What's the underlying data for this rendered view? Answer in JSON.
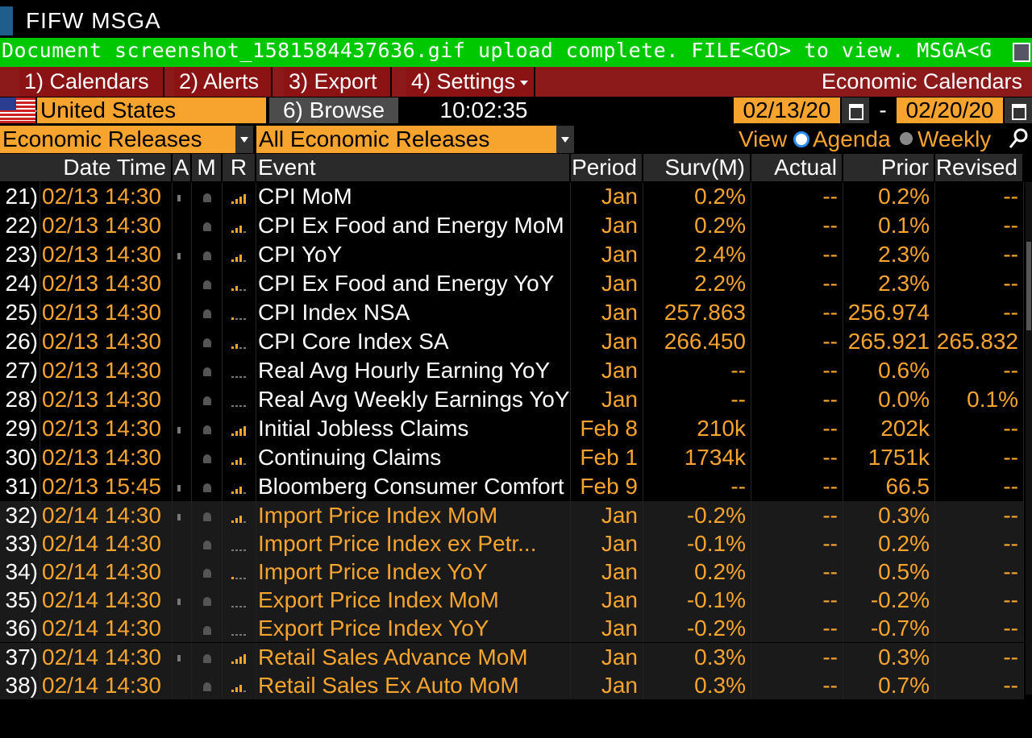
{
  "app": {
    "title": "FIFW MSGA"
  },
  "message": {
    "text": "Document screenshot_1581584437636.gif upload complete. FILE<GO> to view. MSGA<G",
    "color": "#00c800"
  },
  "menu": {
    "items": [
      {
        "label": "1) Calendars"
      },
      {
        "label": "2) Alerts"
      },
      {
        "label": "3) Export"
      },
      {
        "label": "4) Settings"
      }
    ],
    "right_label": "Economic Calendars"
  },
  "filters": {
    "country": "United States",
    "browse_label": "6) Browse",
    "clock": "10:02:35",
    "date_from": "02/13/20",
    "date_separator": "-",
    "date_to": "02/20/20",
    "release_type": "Economic Releases",
    "release_filter": "All Economic Releases",
    "view_label": "View",
    "view_options": [
      "Agenda",
      "Weekly"
    ],
    "view_selected": "Agenda"
  },
  "table": {
    "columns": [
      "Date Time",
      "A",
      "M",
      "R",
      "Event",
      "Period",
      "Surv(M)",
      "Actual",
      "Prior",
      "Revised"
    ],
    "rows": [
      {
        "num": "21)",
        "dt": "02/13 14:30",
        "event": "CPI MoM",
        "period": "Jan",
        "surv": "0.2%",
        "actual": "--",
        "prior": "0.2%",
        "revised": "--",
        "relevance": 4,
        "audio": true,
        "dim": false
      },
      {
        "num": "22)",
        "dt": "02/13 14:30",
        "event": "CPI Ex Food and Energy MoM",
        "period": "Jan",
        "surv": "0.2%",
        "actual": "--",
        "prior": "0.1%",
        "revised": "--",
        "relevance": 3,
        "audio": false,
        "dim": false
      },
      {
        "num": "23)",
        "dt": "02/13 14:30",
        "event": "CPI YoY",
        "period": "Jan",
        "surv": "2.4%",
        "actual": "--",
        "prior": "2.3%",
        "revised": "--",
        "relevance": 3,
        "audio": true,
        "dim": false
      },
      {
        "num": "24)",
        "dt": "02/13 14:30",
        "event": "CPI Ex Food and Energy YoY",
        "period": "Jan",
        "surv": "2.2%",
        "actual": "--",
        "prior": "2.3%",
        "revised": "--",
        "relevance": 2,
        "audio": false,
        "dim": false
      },
      {
        "num": "25)",
        "dt": "02/13 14:30",
        "event": "CPI Index NSA",
        "period": "Jan",
        "surv": "257.863",
        "actual": "--",
        "prior": "256.974",
        "revised": "--",
        "relevance": 1,
        "audio": false,
        "dim": false
      },
      {
        "num": "26)",
        "dt": "02/13 14:30",
        "event": "CPI Core Index SA",
        "period": "Jan",
        "surv": "266.450",
        "actual": "--",
        "prior": "265.921",
        "revised": "265.832",
        "relevance": 2,
        "audio": false,
        "dim": false
      },
      {
        "num": "27)",
        "dt": "02/13 14:30",
        "event": "Real Avg Hourly Earning YoY",
        "period": "Jan",
        "surv": "--",
        "actual": "--",
        "prior": "0.6%",
        "revised": "--",
        "relevance": 0,
        "audio": false,
        "dim": false
      },
      {
        "num": "28)",
        "dt": "02/13 14:30",
        "event": "Real Avg Weekly Earnings YoY",
        "period": "Jan",
        "surv": "--",
        "actual": "--",
        "prior": "0.0%",
        "revised": "0.1%",
        "relevance": 0,
        "audio": false,
        "dim": false
      },
      {
        "num": "29)",
        "dt": "02/13 14:30",
        "event": "Initial Jobless Claims",
        "period": "Feb 8",
        "surv": "210k",
        "actual": "--",
        "prior": "202k",
        "revised": "--",
        "relevance": 4,
        "audio": true,
        "dim": false
      },
      {
        "num": "30)",
        "dt": "02/13 14:30",
        "event": "Continuing Claims",
        "period": "Feb 1",
        "surv": "1734k",
        "actual": "--",
        "prior": "1751k",
        "revised": "--",
        "relevance": 3,
        "audio": false,
        "dim": false
      },
      {
        "num": "31)",
        "dt": "02/13 15:45",
        "event": "Bloomberg Consumer Comfort",
        "period": "Feb 9",
        "surv": "--",
        "actual": "--",
        "prior": "66.5",
        "revised": "--",
        "relevance": 3,
        "audio": true,
        "dim": false
      },
      {
        "num": "32)",
        "dt": "02/14 14:30",
        "event": "Import Price Index MoM",
        "period": "Jan",
        "surv": "-0.2%",
        "actual": "--",
        "prior": "0.3%",
        "revised": "--",
        "relevance": 3,
        "audio": true,
        "dim": true
      },
      {
        "num": "33)",
        "dt": "02/14 14:30",
        "event": "Import Price Index ex Petr...",
        "period": "Jan",
        "surv": "-0.1%",
        "actual": "--",
        "prior": "0.2%",
        "revised": "--",
        "relevance": 0,
        "audio": false,
        "dim": true
      },
      {
        "num": "34)",
        "dt": "02/14 14:30",
        "event": "Import Price Index YoY",
        "period": "Jan",
        "surv": "0.2%",
        "actual": "--",
        "prior": "0.5%",
        "revised": "--",
        "relevance": 1,
        "audio": false,
        "dim": true
      },
      {
        "num": "35)",
        "dt": "02/14 14:30",
        "event": "Export Price Index MoM",
        "period": "Jan",
        "surv": "-0.1%",
        "actual": "--",
        "prior": "-0.2%",
        "revised": "--",
        "relevance": 0,
        "audio": true,
        "dim": true
      },
      {
        "num": "36)",
        "dt": "02/14 14:30",
        "event": "Export Price Index YoY",
        "period": "Jan",
        "surv": "-0.2%",
        "actual": "--",
        "prior": "-0.7%",
        "revised": "--",
        "relevance": 0,
        "audio": false,
        "dim": true
      },
      {
        "num": "37)",
        "dt": "02/14 14:30",
        "event": "Retail Sales Advance MoM",
        "period": "Jan",
        "surv": "0.3%",
        "actual": "--",
        "prior": "0.3%",
        "revised": "--",
        "relevance": 4,
        "audio": true,
        "dim": true
      },
      {
        "num": "38)",
        "dt": "02/14 14:30",
        "event": "Retail Sales Ex Auto MoM",
        "period": "Jan",
        "surv": "0.3%",
        "actual": "--",
        "prior": "0.7%",
        "revised": "--",
        "relevance": 3,
        "audio": false,
        "dim": true
      }
    ]
  },
  "colors": {
    "accent": "#f7a42e",
    "menu_bg": "#8b1313",
    "message_bg": "#00c800",
    "background": "#000000"
  },
  "icons": {
    "flag": "us-flag-icon",
    "calendar": "calendar-icon",
    "search": "search-icon",
    "bell": "bell-icon",
    "audio": "speaker-icon",
    "relevance": "relevance-bars-icon"
  }
}
